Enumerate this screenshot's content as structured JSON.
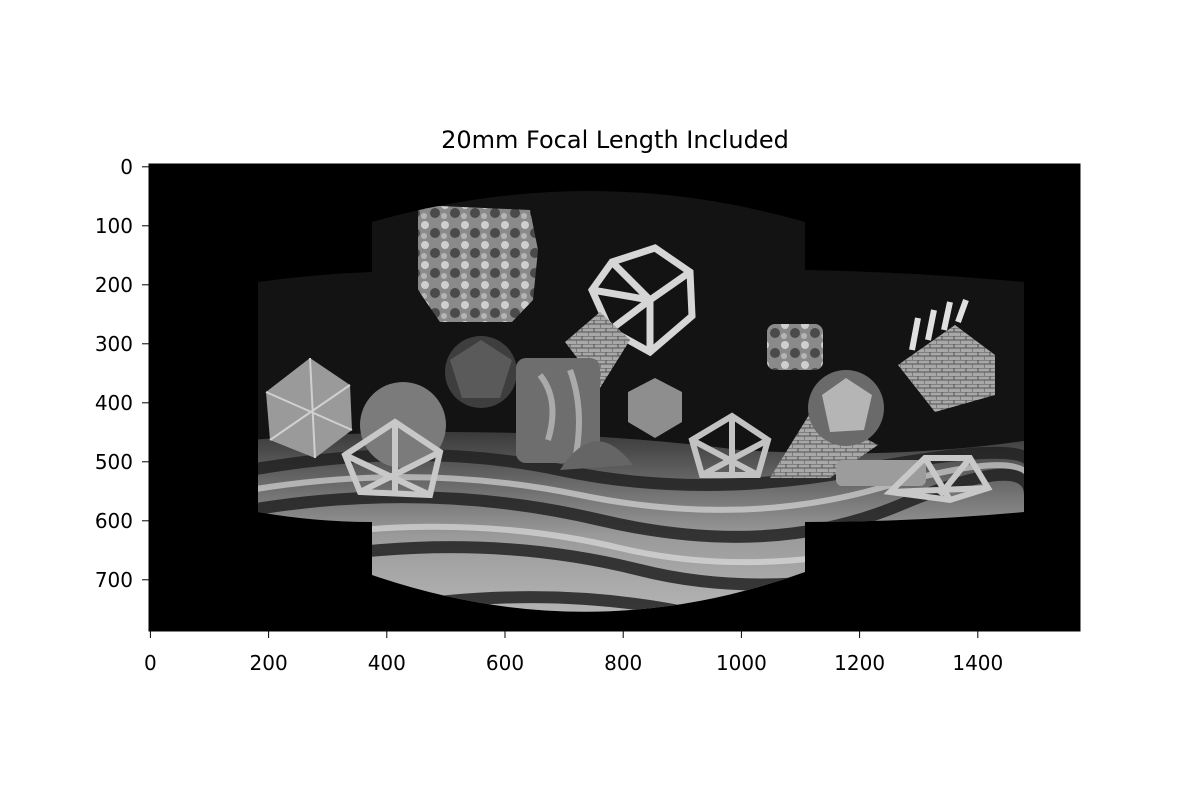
{
  "figure": {
    "title": "20mm Focal Length Included",
    "image_description": "grayscale stitched panorama: polyhedra, wireframe shapes and textured spheres floating over a striped wavy floor",
    "xlim": [
      0,
      1570
    ],
    "ylim_inverted": [
      785,
      0
    ],
    "x_ticks": [
      0,
      200,
      400,
      600,
      800,
      1000,
      1200,
      1400
    ],
    "y_ticks": [
      0,
      100,
      200,
      300,
      400,
      500,
      600,
      700
    ],
    "colors": {
      "background": "#000000",
      "sky": "#131313",
      "floor_light": "#c8c8c8",
      "floor_dark": "#2a2a2a",
      "object_light": "#b0b0b0",
      "object_mid": "#707070"
    }
  }
}
